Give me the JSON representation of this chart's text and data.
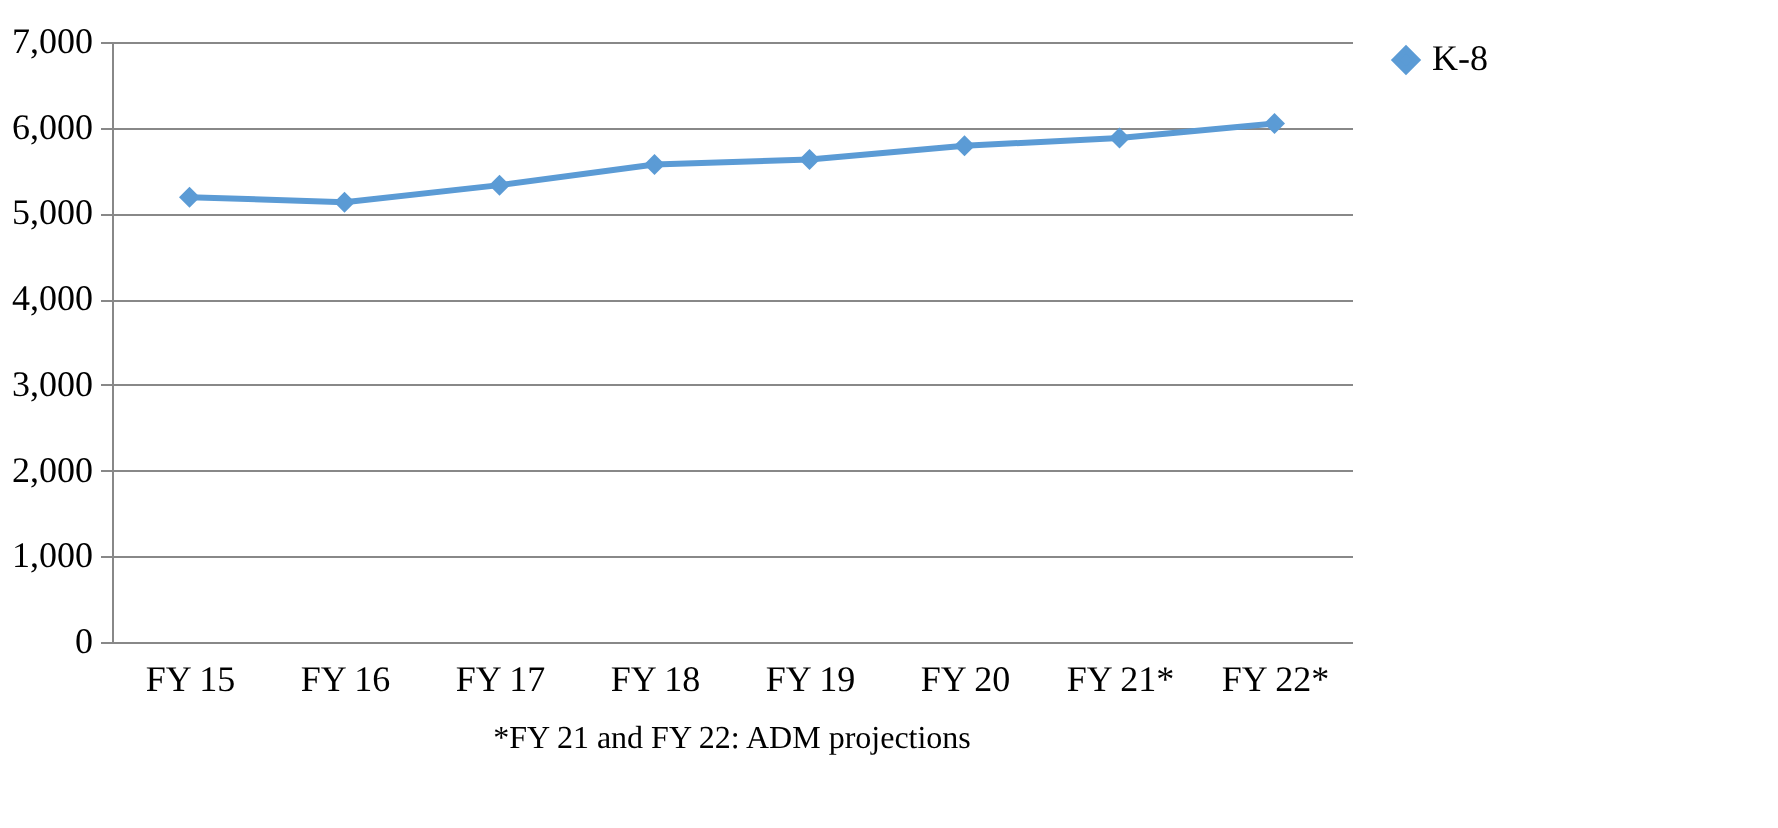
{
  "chart_data": {
    "type": "line",
    "categories": [
      "FY 15",
      "FY 16",
      "FY 17",
      "FY 18",
      "FY 19",
      "FY 20",
      "FY 21*",
      "FY 22*"
    ],
    "series": [
      {
        "name": "K-8",
        "color": "#5b9bd5",
        "values": [
          5190,
          5130,
          5330,
          5570,
          5630,
          5790,
          5880,
          6050
        ]
      }
    ],
    "ylim": [
      0,
      7000
    ],
    "yticks": [
      {
        "value": 0,
        "label": "0"
      },
      {
        "value": 1000,
        "label": "1,000"
      },
      {
        "value": 2000,
        "label": "2,000"
      },
      {
        "value": 3000,
        "label": "3,000"
      },
      {
        "value": 4000,
        "label": "4,000"
      },
      {
        "value": 5000,
        "label": "5,000"
      },
      {
        "value": 6000,
        "label": "6,000"
      },
      {
        "value": 7000,
        "label": "7,000"
      }
    ],
    "grid": "y",
    "legend": "right",
    "marker": "diamond",
    "line_style": "solid",
    "annotations": [
      "*FY 21 and FY 22: ADM projections"
    ]
  }
}
